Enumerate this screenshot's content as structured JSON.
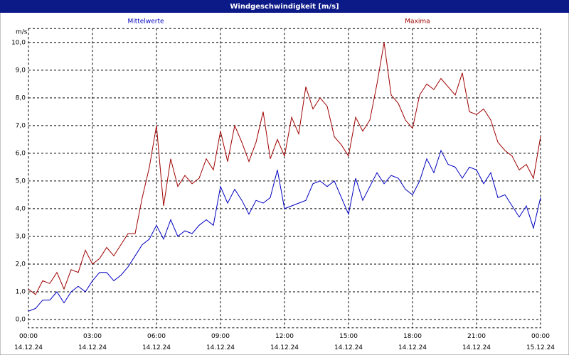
{
  "chart_data": {
    "type": "line",
    "title": "Windgeschwindigkeit [m/s]",
    "y_unit": "m/s",
    "x": [
      0,
      20,
      40,
      60,
      80,
      100,
      120,
      140,
      160,
      180,
      200,
      220,
      240,
      260,
      280,
      300,
      320,
      340,
      360,
      380,
      400,
      420,
      440,
      460,
      480,
      500,
      520,
      540,
      560,
      580,
      600,
      620,
      640,
      660,
      680,
      700,
      720,
      740,
      760,
      780,
      800,
      820,
      840,
      860,
      880,
      900,
      920,
      940,
      960,
      980,
      1000,
      1020,
      1040,
      1060,
      1080,
      1100,
      1120,
      1140,
      1160,
      1180,
      1200,
      1220,
      1240,
      1260,
      1280,
      1300,
      1320,
      1340,
      1360,
      1380,
      1400,
      1420,
      1440
    ],
    "series": [
      {
        "name": "Mittelwerte",
        "color": "#0000c0",
        "values": [
          0.3,
          0.4,
          0.7,
          0.7,
          1.0,
          0.6,
          1.0,
          1.2,
          1.0,
          1.4,
          1.7,
          1.7,
          1.4,
          1.6,
          1.9,
          2.3,
          2.7,
          2.9,
          3.4,
          2.9,
          3.6,
          3.0,
          3.2,
          3.1,
          3.4,
          3.6,
          3.4,
          4.8,
          4.2,
          4.7,
          4.3,
          3.8,
          4.3,
          4.2,
          4.4,
          5.4,
          4.0,
          4.1,
          4.2,
          4.3,
          4.9,
          5.0,
          4.8,
          5.0,
          4.4,
          3.8,
          5.1,
          4.3,
          4.8,
          5.3,
          4.9,
          5.2,
          5.1,
          4.7,
          4.5,
          5.0,
          5.8,
          5.3,
          6.1,
          5.6,
          5.5,
          5.1,
          5.5,
          5.4,
          4.9,
          5.3,
          4.4,
          4.5,
          4.1,
          3.7,
          4.1,
          3.3,
          4.4
        ]
      },
      {
        "name": "Maxima",
        "color": "#a00000",
        "values": [
          1.1,
          0.9,
          1.4,
          1.3,
          1.7,
          1.1,
          1.8,
          1.7,
          2.5,
          2.0,
          2.2,
          2.6,
          2.3,
          2.7,
          3.1,
          3.1,
          4.4,
          5.5,
          7.0,
          4.1,
          5.8,
          4.8,
          5.2,
          4.9,
          5.1,
          5.8,
          5.4,
          6.8,
          5.7,
          7.0,
          6.4,
          5.7,
          6.4,
          7.5,
          5.8,
          6.5,
          5.9,
          7.3,
          6.7,
          8.4,
          7.6,
          8.0,
          7.7,
          6.6,
          6.3,
          5.9,
          7.3,
          6.8,
          7.2,
          8.5,
          10.0,
          8.1,
          7.8,
          7.2,
          6.9,
          8.1,
          8.5,
          8.3,
          8.7,
          8.4,
          8.1,
          8.9,
          7.5,
          7.4,
          7.6,
          7.2,
          6.4,
          6.1,
          5.9,
          5.4,
          5.6,
          5.1,
          6.6
        ]
      }
    ],
    "xlim": [
      0,
      1440
    ],
    "xticks": [
      {
        "value": 0,
        "label": "00:00"
      },
      {
        "value": 180,
        "label": "03:00"
      },
      {
        "value": 360,
        "label": "06:00"
      },
      {
        "value": 540,
        "label": "09:00"
      },
      {
        "value": 720,
        "label": "12:00"
      },
      {
        "value": 900,
        "label": "15:00"
      },
      {
        "value": 1080,
        "label": "18:00"
      },
      {
        "value": 1260,
        "label": "21:00"
      },
      {
        "value": 1440,
        "label": "00:00"
      }
    ],
    "xtick_dates": [
      "14.12.24",
      "14.12.24",
      "14.12.24",
      "14.12.24",
      "14.12.24",
      "14.12.24",
      "14.12.24",
      "14.12.24",
      "15.12.24"
    ],
    "ylim": [
      -0.3,
      10.5
    ],
    "yticks": [
      {
        "value": 0,
        "label": "0,0"
      },
      {
        "value": 1,
        "label": "1,0"
      },
      {
        "value": 2,
        "label": "2,0"
      },
      {
        "value": 3,
        "label": "3,0"
      },
      {
        "value": 4,
        "label": "4,0"
      },
      {
        "value": 5,
        "label": "5,0"
      },
      {
        "value": 6,
        "label": "6,0"
      },
      {
        "value": 7,
        "label": "7,0"
      },
      {
        "value": 8,
        "label": "8,0"
      },
      {
        "value": 9,
        "label": "9,0"
      },
      {
        "value": 10,
        "label": "10,0"
      }
    ],
    "grid": true
  }
}
